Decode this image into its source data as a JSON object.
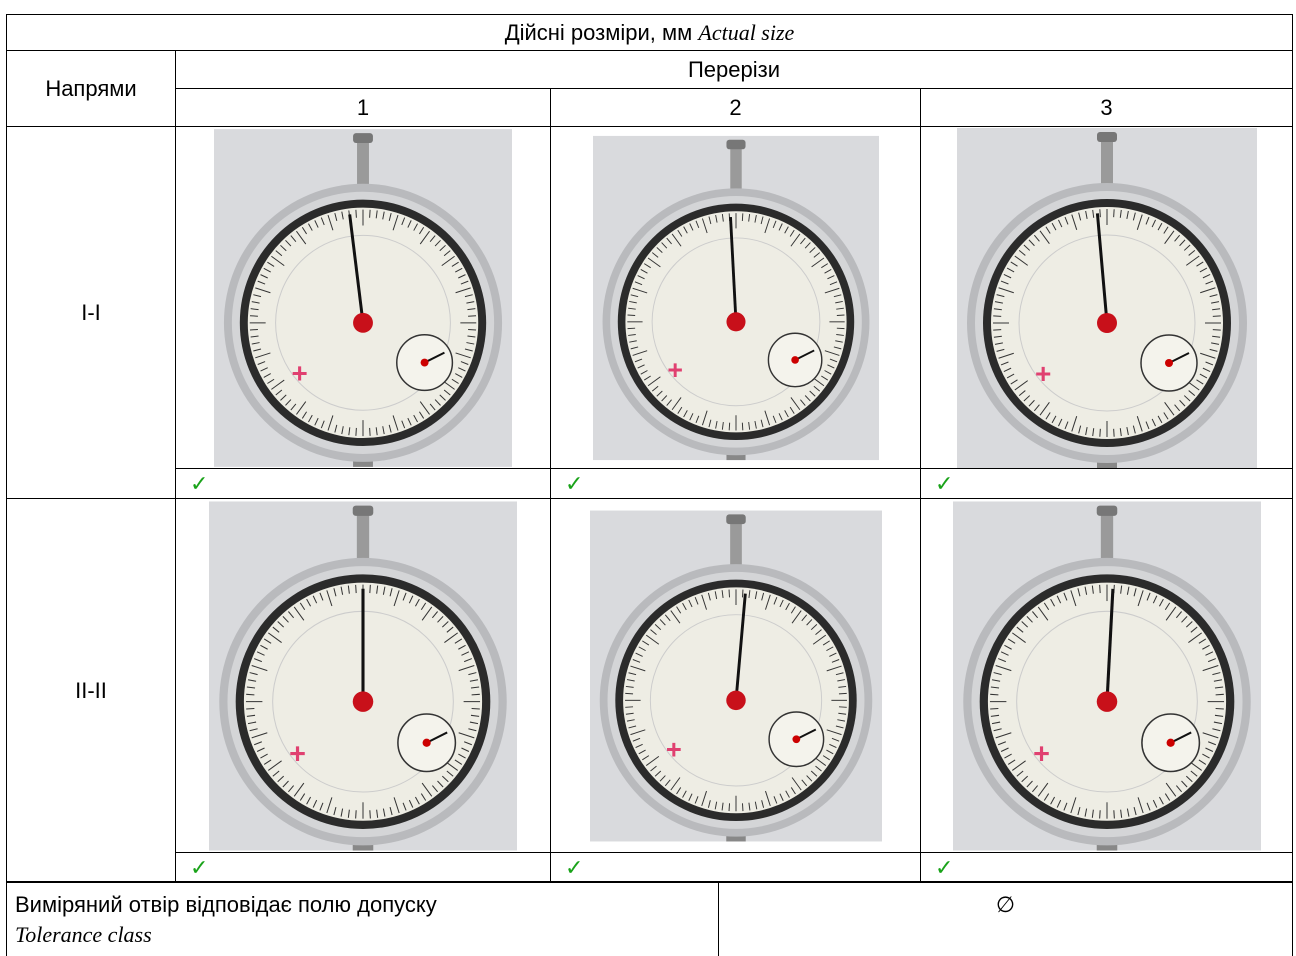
{
  "header": {
    "title": "Дійсні розміри, мм",
    "title_en": "Actual size"
  },
  "directions_label": "Напрями",
  "sections_label": "Перерізи",
  "sections": [
    "1",
    "2",
    "3"
  ],
  "rows": [
    {
      "label": "I-I",
      "marks": [
        "✓",
        "✓",
        "✓"
      ]
    },
    {
      "label": "II-II",
      "marks": [
        "✓",
        "✓",
        "✓"
      ]
    }
  ],
  "conclusion": {
    "text": "Виміряний отвір відповідає полю допуску",
    "text_en": "Tolerance class",
    "value": "∅"
  }
}
